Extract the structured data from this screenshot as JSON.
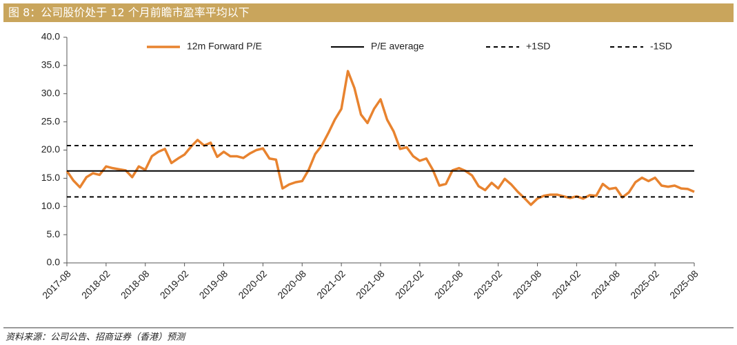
{
  "chart_data": {
    "type": "line",
    "title": "图 8：公司股价处于 12 个月前瞻市盈率平均以下",
    "source": "资料来源：公司公告、招商证券（香港）预测",
    "categories": [
      "2017-08",
      null,
      null,
      null,
      null,
      null,
      "2018-02",
      null,
      null,
      null,
      null,
      null,
      "2018-08",
      null,
      null,
      null,
      null,
      null,
      "2019-02",
      null,
      null,
      null,
      null,
      null,
      "2019-08",
      null,
      null,
      null,
      null,
      null,
      "2020-02",
      null,
      null,
      null,
      null,
      null,
      "2020-08",
      null,
      null,
      null,
      null,
      null,
      "2021-02",
      null,
      null,
      null,
      null,
      null,
      "2021-08",
      null,
      null,
      null,
      null,
      null,
      "2022-02",
      null,
      null,
      null,
      null,
      null,
      "2022-08",
      null,
      null,
      null,
      null,
      null,
      "2023-02",
      null,
      null,
      null,
      null,
      null,
      "2023-08",
      null,
      null,
      null,
      null,
      null,
      "2024-02",
      null,
      null,
      null,
      null,
      null,
      "2024-08",
      null,
      null,
      null,
      null,
      null,
      "2025-02",
      null,
      null,
      null,
      null,
      null,
      "2025-08"
    ],
    "series": [
      {
        "name": "12m Forward P/E",
        "color": "#e8832f",
        "values": [
          16.3,
          14.6,
          13.4,
          15.2,
          15.9,
          15.6,
          17.1,
          16.8,
          16.6,
          16.4,
          15.2,
          17.1,
          16.5,
          18.9,
          19.7,
          20.2,
          17.7,
          18.5,
          19.2,
          20.6,
          21.8,
          20.8,
          21.3,
          18.8,
          19.7,
          18.9,
          18.9,
          18.6,
          19.4,
          20.0,
          20.3,
          18.5,
          18.3,
          13.2,
          13.9,
          14.3,
          14.5,
          16.5,
          19.3,
          20.8,
          23.0,
          25.4,
          27.3,
          34.0,
          31.0,
          26.3,
          24.8,
          27.3,
          29.0,
          25.4,
          23.3,
          20.2,
          20.5,
          18.9,
          18.1,
          18.5,
          16.5,
          13.7,
          14.0,
          16.4,
          16.8,
          16.3,
          15.5,
          13.6,
          12.9,
          14.2,
          13.2,
          14.9,
          13.9,
          12.6,
          11.5,
          10.3,
          11.4,
          11.9,
          12.1,
          12.1,
          11.8,
          11.5,
          11.8,
          11.4,
          12.0,
          11.9,
          14.0,
          13.1,
          13.3,
          11.6,
          12.5,
          14.3,
          15.1,
          14.5,
          15.1,
          13.7,
          13.5,
          13.7,
          13.2,
          13.1,
          12.6
        ]
      },
      {
        "name": "P/E average",
        "color": "#000000",
        "value": 16.3
      },
      {
        "name": "+1SD",
        "color": "#000000",
        "value": 20.8,
        "dash": true
      },
      {
        "name": "-1SD",
        "color": "#000000",
        "value": 11.7,
        "dash": true
      }
    ],
    "ylim": [
      0,
      40
    ],
    "yticks": [
      {
        "value": 0,
        "label": "0.0"
      },
      {
        "value": 5,
        "label": "5.0"
      },
      {
        "value": 10,
        "label": "10.0"
      },
      {
        "value": 15,
        "label": "15.0"
      },
      {
        "value": 20,
        "label": "20.0"
      },
      {
        "value": 25,
        "label": "25.0"
      },
      {
        "value": 30,
        "label": "30.0"
      },
      {
        "value": 35,
        "label": "35.0"
      },
      {
        "value": 40,
        "label": "40.0"
      }
    ]
  }
}
